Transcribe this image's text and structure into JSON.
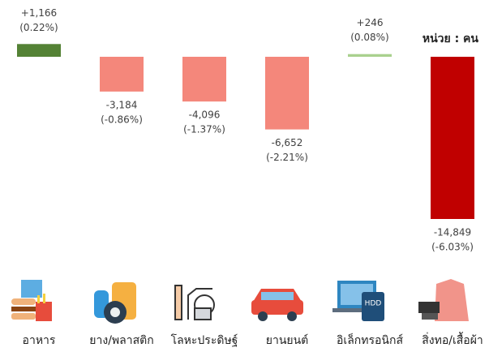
{
  "chart_data": {
    "type": "bar",
    "unit_label": "หน่วย : คน",
    "categories": [
      "อาหาร",
      "ยาง/พลาสติก",
      "โลหะประดิษฐ์",
      "ยานยนต์",
      "อิเล็กทรอนิกส์",
      "สิ่งทอ/เสื้อผ้า"
    ],
    "values": [
      1166,
      -3184,
      -4096,
      -6652,
      246,
      -14849
    ],
    "value_labels": [
      "+1,166",
      "-3,184",
      "-4,096",
      "-6,652",
      "+246",
      "-14,849"
    ],
    "percents": [
      0.22,
      -0.86,
      -1.37,
      -2.21,
      0.08,
      -6.03
    ],
    "percent_labels": [
      "(0.22%)",
      "(-0.86%)",
      "(-1.37%)",
      "(-2.21%)",
      "(0.08%)",
      "(-6.03%)"
    ],
    "colors": [
      "#548235",
      "#f4877b",
      "#f4877b",
      "#f4877b",
      "#a9d18e",
      "#c00000"
    ]
  }
}
